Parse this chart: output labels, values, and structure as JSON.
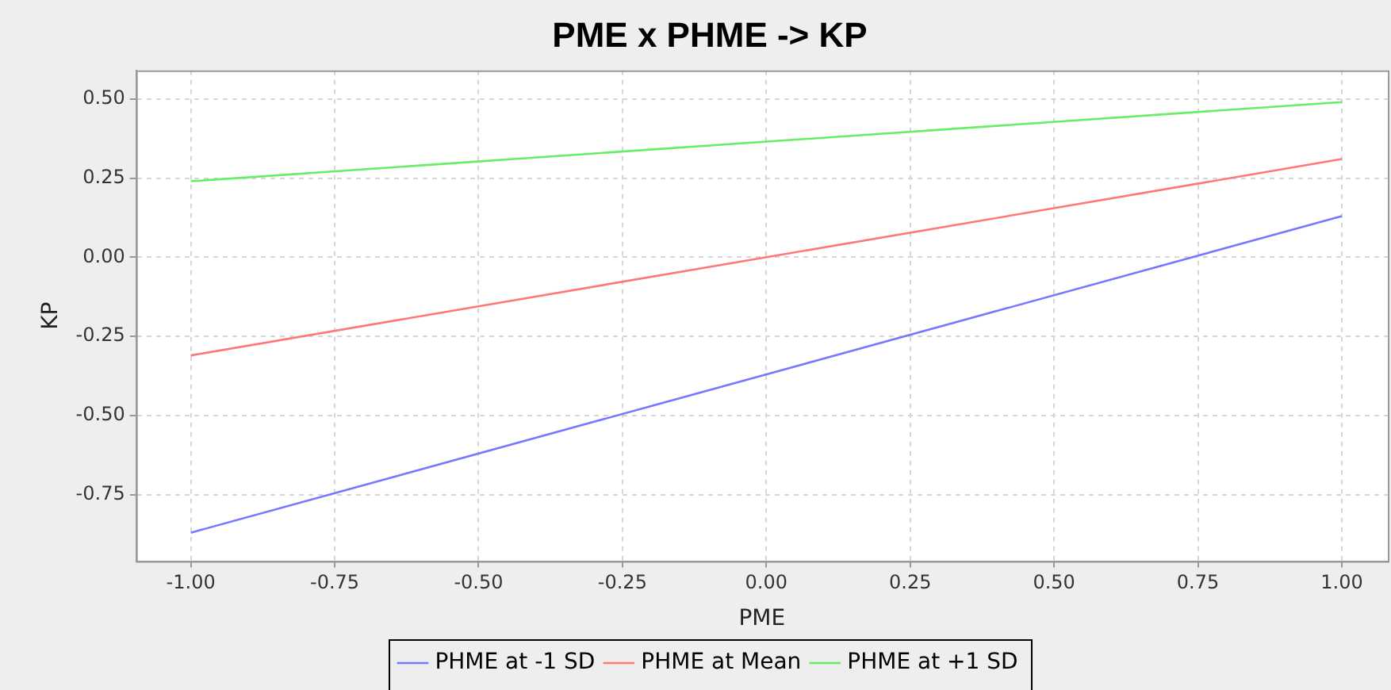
{
  "chart_data": {
    "type": "line",
    "title": "PME x PHME -> KP",
    "xlabel": "PME",
    "ylabel": "KP",
    "x": [
      -1,
      1
    ],
    "series": [
      {
        "name": "PHME at -1 SD",
        "color": "#7777ff",
        "values": [
          -0.87,
          0.13
        ]
      },
      {
        "name": "PHME at Mean",
        "color": "#ff7777",
        "values": [
          -0.31,
          0.31
        ]
      },
      {
        "name": "PHME at +1 SD",
        "color": "#66ee66",
        "values": [
          0.24,
          0.49
        ]
      }
    ],
    "xlim": [
      -1.095,
      1.08
    ],
    "xticks": [
      {
        "value": -1,
        "label": "-1.00"
      },
      {
        "value": -0.75,
        "label": "-0.75"
      },
      {
        "value": -0.5,
        "label": "-0.50"
      },
      {
        "value": -0.25,
        "label": "-0.25"
      },
      {
        "value": 0,
        "label": "0.00"
      },
      {
        "value": 0.25,
        "label": "0.25"
      },
      {
        "value": 0.5,
        "label": "0.50"
      },
      {
        "value": 0.75,
        "label": "0.75"
      },
      {
        "value": 1,
        "label": "1.00"
      }
    ],
    "ylim": [
      -0.96,
      0.59
    ],
    "yticks": [
      {
        "value": -0.75,
        "label": "-0.75"
      },
      {
        "value": -0.5,
        "label": "-0.50"
      },
      {
        "value": -0.25,
        "label": "-0.25"
      },
      {
        "value": 0,
        "label": "0.00"
      },
      {
        "value": 0.25,
        "label": "0.25"
      },
      {
        "value": 0.5,
        "label": "0.50"
      }
    ],
    "grid": true,
    "legend": "bottom",
    "marker": "none",
    "line_style": "solid"
  }
}
